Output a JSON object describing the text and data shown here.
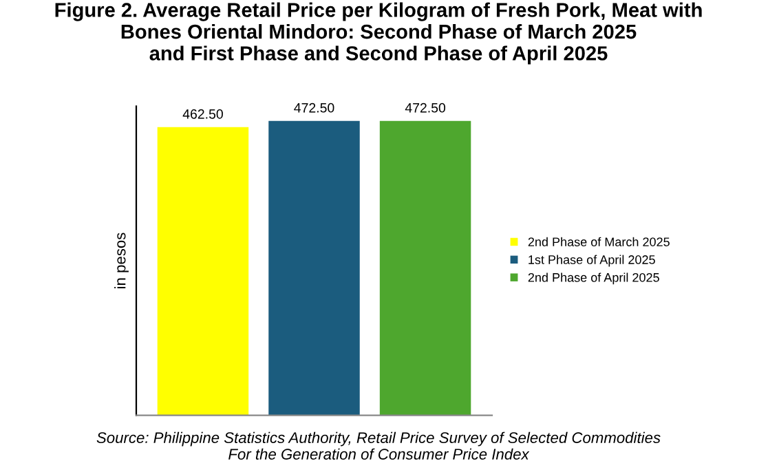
{
  "chart_data": {
    "type": "bar",
    "title": "Figure 2. Average Retail Price per Kilogram of Fresh Pork, Meat with\nBones Oriental Mindoro: Second Phase of March 2025\nand First Phase and Second Phase of April 2025",
    "ylabel": "in pesos",
    "categories": [
      null,
      null,
      null
    ],
    "stacked": true,
    "series": [
      {
        "name": "2nd Phase of March 2025",
        "color": "#ffff00",
        "values": [
          462.5,
          null,
          null
        ],
        "value_labels": [
          "462.50",
          null,
          null
        ]
      },
      {
        "name": "1st Phase of April 2025",
        "color": "#1b5c7e",
        "values": [
          null,
          472.5,
          null
        ],
        "value_labels": [
          null,
          "472.50",
          null
        ]
      },
      {
        "name": "2nd Phase of April 2025",
        "color": "#4ea72e",
        "values": [
          null,
          null,
          472.5
        ],
        "value_labels": [
          null,
          null,
          "472.50"
        ]
      }
    ],
    "legend": "right",
    "grid": false,
    "tick_labels": false,
    "annotations": [
      "Source: Philippine Statistics Authority, Retail Price Survey of Selected Commodities\nFor the Generation of Consumer Price Index"
    ]
  }
}
